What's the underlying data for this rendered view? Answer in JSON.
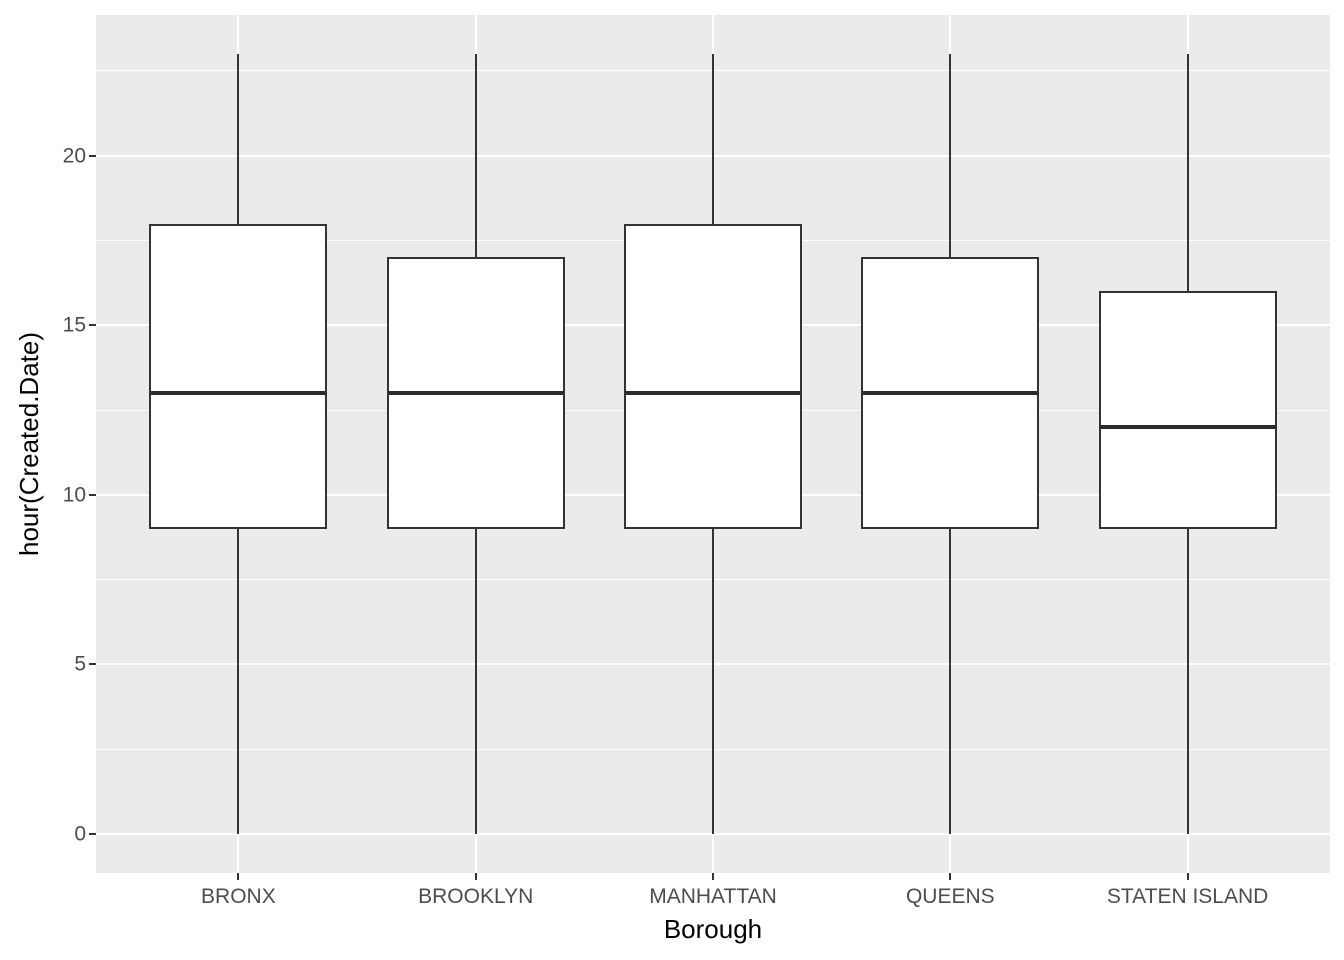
{
  "chart_data": {
    "type": "boxplot",
    "title": "",
    "xlabel": "Borough",
    "ylabel": "hour(Created.Date)",
    "categories": [
      "BRONX",
      "BROOKLYN",
      "MANHATTAN",
      "QUEENS",
      "STATEN ISLAND"
    ],
    "series": [
      {
        "category": "BRONX",
        "whisker_low": 0,
        "q1": 9,
        "median": 13,
        "q3": 18,
        "whisker_high": 23
      },
      {
        "category": "BROOKLYN",
        "whisker_low": 0,
        "q1": 9,
        "median": 13,
        "q3": 17,
        "whisker_high": 23
      },
      {
        "category": "MANHATTAN",
        "whisker_low": 0,
        "q1": 9,
        "median": 13,
        "q3": 18,
        "whisker_high": 23
      },
      {
        "category": "QUEENS",
        "whisker_low": 0,
        "q1": 9,
        "median": 13,
        "q3": 17,
        "whisker_high": 23
      },
      {
        "category": "STATEN ISLAND",
        "whisker_low": 0,
        "q1": 9,
        "median": 12,
        "q3": 16,
        "whisker_high": 23
      }
    ],
    "y_axis": {
      "tick_labels": [
        "0",
        "5",
        "10",
        "15",
        "20"
      ],
      "ticks": [
        0,
        5,
        10,
        15,
        20
      ],
      "minor_ticks": [
        2.5,
        7.5,
        12.5,
        17.5,
        22.5
      ],
      "range": [
        -1.15,
        24.15
      ]
    },
    "legend": "none",
    "grid": true,
    "box_rel_width": 0.75,
    "style": {
      "panel_bg": "#EBEBEB",
      "grid_major_color": "#FFFFFF",
      "grid_minor_color": "#FFFFFF",
      "box_fill": "#FFFFFF",
      "box_stroke": "#333333",
      "median_color": "#2B2B2B",
      "axis_text_color": "#4D4D4D",
      "axis_title_color": "#000000",
      "tick_mark_color": "#333333"
    }
  }
}
